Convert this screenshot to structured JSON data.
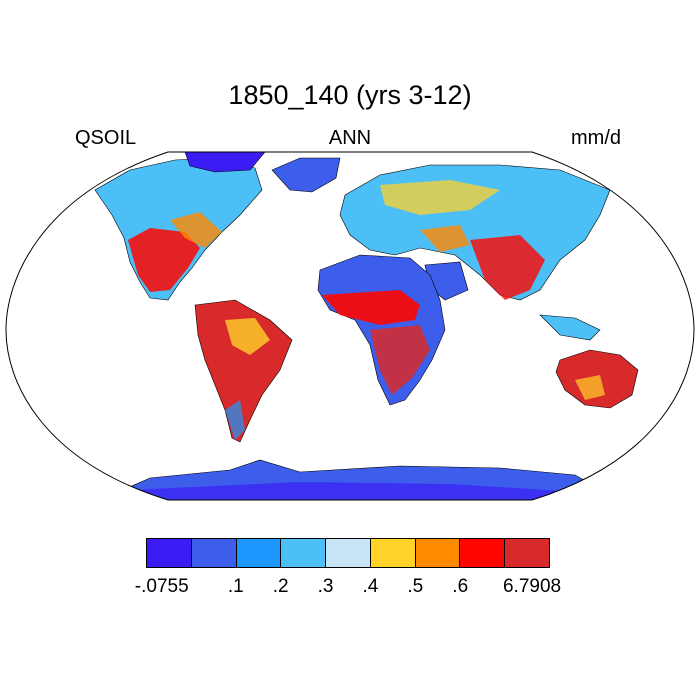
{
  "title": "1850_140 (yrs 3-12)",
  "variable_label": "QSOIL",
  "season_label": "ANN",
  "units_label": "mm/d",
  "colorbar": {
    "colors": [
      "#3c1cf5",
      "#3d5eea",
      "#1c97ff",
      "#4cbff6",
      "#c7e5f7",
      "#ffd22a",
      "#ff8a00",
      "#ff0500",
      "#d82a2a"
    ],
    "labels": [
      "-.0755",
      ".1",
      ".2",
      ".3",
      ".4",
      ".5",
      ".6",
      "6.7908"
    ]
  },
  "map": {
    "projection": "Robinson",
    "ocean_color": "#ffffff",
    "coastline_color": "#000000"
  }
}
